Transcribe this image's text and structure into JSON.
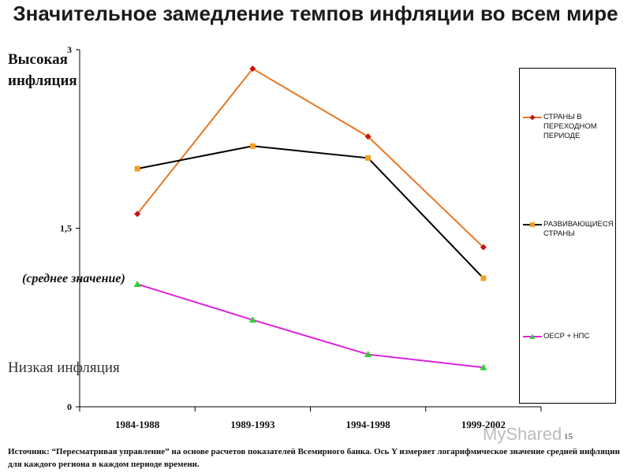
{
  "title": "Значительное замедление темпов инфляции во всем мире",
  "labels": {
    "high": "Высокая инфляция",
    "low": "Низкая инфляция",
    "mean": "(среднее значение)"
  },
  "source": "Источник: “Пересматривая управление” на основе расчетов показателей Всемирного банка. Ось Y измеряет логарифмическое значение средней инфляции для каждого региона в каждом периоде времени.",
  "watermark": "MyShared",
  "page_number": "15",
  "chart_data": {
    "type": "line",
    "categories": [
      "1984-1988",
      "1989-1993",
      "1994-1998",
      "1999-2002"
    ],
    "y_ticks": [
      "0",
      "1,5",
      "3"
    ],
    "ylim": [
      0,
      3
    ],
    "series": [
      {
        "name": "СТРАНЫ В ПЕРЕХОДНОМ ПЕРИОДЕ",
        "values": [
          1.62,
          2.84,
          2.27,
          1.34
        ],
        "color": "#e87722",
        "marker": "diamond",
        "marker_color": "#cc1111"
      },
      {
        "name": "РАЗВИВАЮЩИЕСЯ СТРАНЫ",
        "values": [
          2.0,
          2.19,
          2.09,
          1.08
        ],
        "color": "#000000",
        "marker": "square",
        "marker_color": "#f0a020"
      },
      {
        "name": "ОЕСР + НПС",
        "values": [
          1.03,
          0.73,
          0.44,
          0.33
        ],
        "color": "#dd22dd",
        "marker": "triangle",
        "marker_color": "#33cc33"
      }
    ],
    "legend_position": "right",
    "grid": false
  }
}
